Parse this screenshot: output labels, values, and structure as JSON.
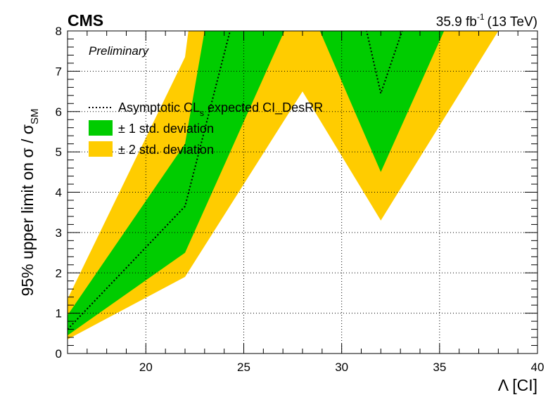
{
  "header": {
    "experiment": "CMS",
    "status": "Preliminary",
    "lumi_value": "35.9 fb",
    "lumi_exp": "-1",
    "energy": "(13 TeV)"
  },
  "axes": {
    "y_label_main": "95% upper limit on σ / σ",
    "y_label_sub": "SM",
    "x_label": "Λ [CI]"
  },
  "legend": {
    "entry_expected_a": "Asymptotic CL",
    "entry_expected_sub": "s",
    "entry_expected_b": " expected CI_DesRR",
    "entry_1sigma": "± 1 std. deviation",
    "entry_2sigma": "± 2 std. deviation"
  },
  "colors": {
    "band_1sigma": "#00cc00",
    "band_2sigma": "#ffcc00",
    "expected_line": "#000000",
    "grid": "#000000"
  },
  "chart_data": {
    "type": "line",
    "xlim": [
      16,
      40
    ],
    "ylim": [
      0,
      8
    ],
    "x_ticks": [
      20,
      25,
      30,
      35,
      40
    ],
    "y_ticks": [
      0,
      1,
      2,
      3,
      4,
      5,
      6,
      7,
      8
    ],
    "grid": true,
    "legend_position": "top-left",
    "log_scale": false,
    "x": [
      16,
      22,
      28,
      32,
      38
    ],
    "series": [
      {
        "name": "Asymptotic CLs expected CI_DesRR",
        "style": "dotted",
        "values": [
          0.6,
          3.65,
          15.0,
          6.45,
          15.0
        ]
      },
      {
        "name": "± 1 std. deviation",
        "style": "band",
        "lower": [
          0.45,
          2.5,
          9.0,
          4.5,
          11.0
        ],
        "upper": [
          0.95,
          5.2,
          22.0,
          9.0,
          22.0
        ]
      },
      {
        "name": "± 2 std. deviation",
        "style": "band",
        "lower": [
          0.35,
          1.9,
          6.5,
          3.3,
          8.0
        ],
        "upper": [
          1.35,
          7.35,
          30.0,
          12.5,
          30.0
        ]
      }
    ]
  }
}
